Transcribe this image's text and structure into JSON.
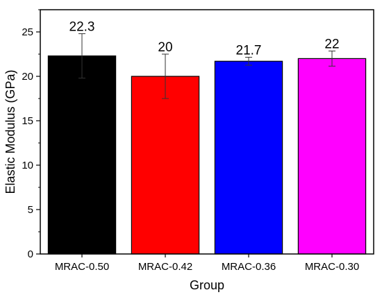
{
  "chart_data": {
    "type": "bar",
    "title": "",
    "xlabel": "Group",
    "ylabel": "Elastic Modulus (GPa)",
    "categories": [
      "MRAC-0.50",
      "MRAC-0.42",
      "MRAC-0.36",
      "MRAC-0.30"
    ],
    "values": [
      22.3,
      20,
      21.7,
      22
    ],
    "value_labels": [
      "22.3",
      "20",
      "21.7",
      "22"
    ],
    "error_bars": [
      2.5,
      2.5,
      0.45,
      0.85
    ],
    "colors": [
      "#000000",
      "#ff0000",
      "#0000ff",
      "#ff00ff"
    ],
    "ylim": [
      0,
      27.5
    ],
    "yticks": [
      0,
      5,
      10,
      15,
      20,
      25
    ],
    "ytick_labels": [
      "0",
      "5",
      "10",
      "15",
      "20",
      "25"
    ],
    "grid": false,
    "legend": "none"
  }
}
